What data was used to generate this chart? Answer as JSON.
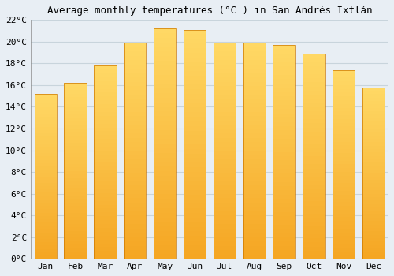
{
  "title": "Average monthly temperatures (°C ) in San Andrés Ixtlán",
  "months": [
    "Jan",
    "Feb",
    "Mar",
    "Apr",
    "May",
    "Jun",
    "Jul",
    "Aug",
    "Sep",
    "Oct",
    "Nov",
    "Dec"
  ],
  "values": [
    15.2,
    16.2,
    17.8,
    19.9,
    21.2,
    21.1,
    19.9,
    19.9,
    19.7,
    18.9,
    17.4,
    15.8
  ],
  "bar_color_bottom": "#F5A623",
  "bar_color_top": "#FFD966",
  "bar_edge_color": "#CC7700",
  "ylim": [
    0,
    22
  ],
  "ytick_step": 2,
  "background_color": "#E8EEF4",
  "plot_bg_color": "#E8EEF4",
  "grid_color": "#C8D4DC",
  "title_fontsize": 9,
  "tick_fontsize": 8,
  "font_family": "monospace"
}
